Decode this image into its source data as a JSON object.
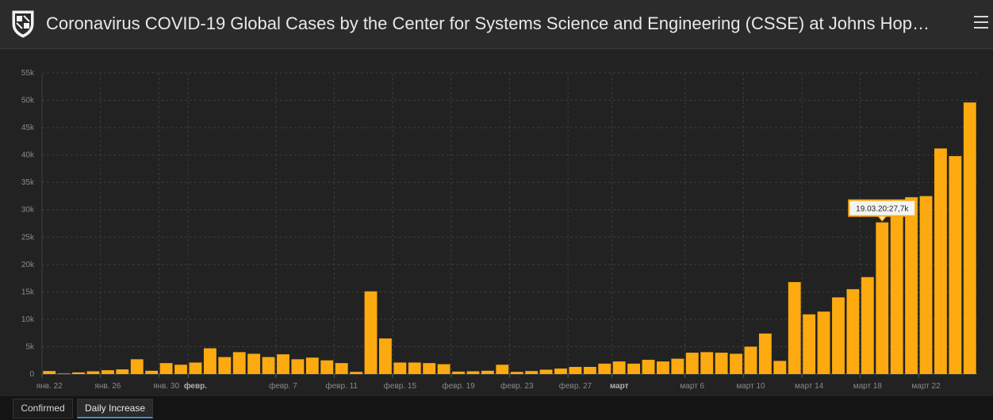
{
  "header": {
    "title": "Coronavirus COVID-19 Global Cases by the Center for Systems Science and Engineering (CSSE) at Johns Hop…",
    "logo_icon": "shield-logo-icon",
    "menu_icon": "hamburger-menu-icon"
  },
  "tabs": [
    {
      "label": "Confirmed",
      "active": false
    },
    {
      "label": "Daily Increase",
      "active": true
    }
  ],
  "chart_data": {
    "type": "bar",
    "ylim": [
      0,
      55000
    ],
    "y_ticks": [
      {
        "value": 0,
        "label": "0"
      },
      {
        "value": 5000,
        "label": "5k"
      },
      {
        "value": 10000,
        "label": "10k"
      },
      {
        "value": 15000,
        "label": "15k"
      },
      {
        "value": 20000,
        "label": "20k"
      },
      {
        "value": 25000,
        "label": "25k"
      },
      {
        "value": 30000,
        "label": "30k"
      },
      {
        "value": 35000,
        "label": "35k"
      },
      {
        "value": 40000,
        "label": "40k"
      },
      {
        "value": 45000,
        "label": "45k"
      },
      {
        "value": 50000,
        "label": "50k"
      },
      {
        "value": 55000,
        "label": "55k"
      }
    ],
    "x_ticks": [
      {
        "index": 0,
        "label": "янв. 22",
        "bold": false
      },
      {
        "index": 4,
        "label": "янв. 26",
        "bold": false
      },
      {
        "index": 8,
        "label": "янв. 30",
        "bold": false
      },
      {
        "index": 10,
        "label": "февр.",
        "bold": true
      },
      {
        "index": 16,
        "label": "февр. 7",
        "bold": false
      },
      {
        "index": 20,
        "label": "февр. 11",
        "bold": false
      },
      {
        "index": 24,
        "label": "февр. 15",
        "bold": false
      },
      {
        "index": 28,
        "label": "февр. 19",
        "bold": false
      },
      {
        "index": 32,
        "label": "февр. 23",
        "bold": false
      },
      {
        "index": 36,
        "label": "февр. 27",
        "bold": false
      },
      {
        "index": 39,
        "label": "март",
        "bold": true
      },
      {
        "index": 44,
        "label": "март 6",
        "bold": false
      },
      {
        "index": 48,
        "label": "март 10",
        "bold": false
      },
      {
        "index": 52,
        "label": "март 14",
        "bold": false
      },
      {
        "index": 56,
        "label": "март 18",
        "bold": false
      },
      {
        "index": 60,
        "label": "март 22",
        "bold": false
      }
    ],
    "values": [
      550,
      100,
      300,
      500,
      700,
      850,
      2700,
      600,
      2000,
      1700,
      2100,
      4700,
      3100,
      4000,
      3700,
      3100,
      3600,
      2700,
      3000,
      2500,
      2000,
      400,
      15100,
      6500,
      2100,
      2100,
      2000,
      1800,
      450,
      500,
      600,
      1700,
      400,
      550,
      800,
      1000,
      1300,
      1300,
      1900,
      2300,
      1900,
      2600,
      2300,
      2800,
      3900,
      4000,
      3900,
      3700,
      5000,
      7400,
      2400,
      16800,
      10900,
      11400,
      14000,
      15500,
      17700,
      27700,
      29000,
      32300,
      32500,
      41200,
      39800,
      49600
    ],
    "bar_color": "#fcaa0f",
    "tooltip": {
      "index": 57,
      "text": "19.03.20:27,7k"
    }
  },
  "colors": {
    "background": "#222222",
    "grid": "#3c3c3c",
    "tab_active_border": "#3b8fd0"
  }
}
